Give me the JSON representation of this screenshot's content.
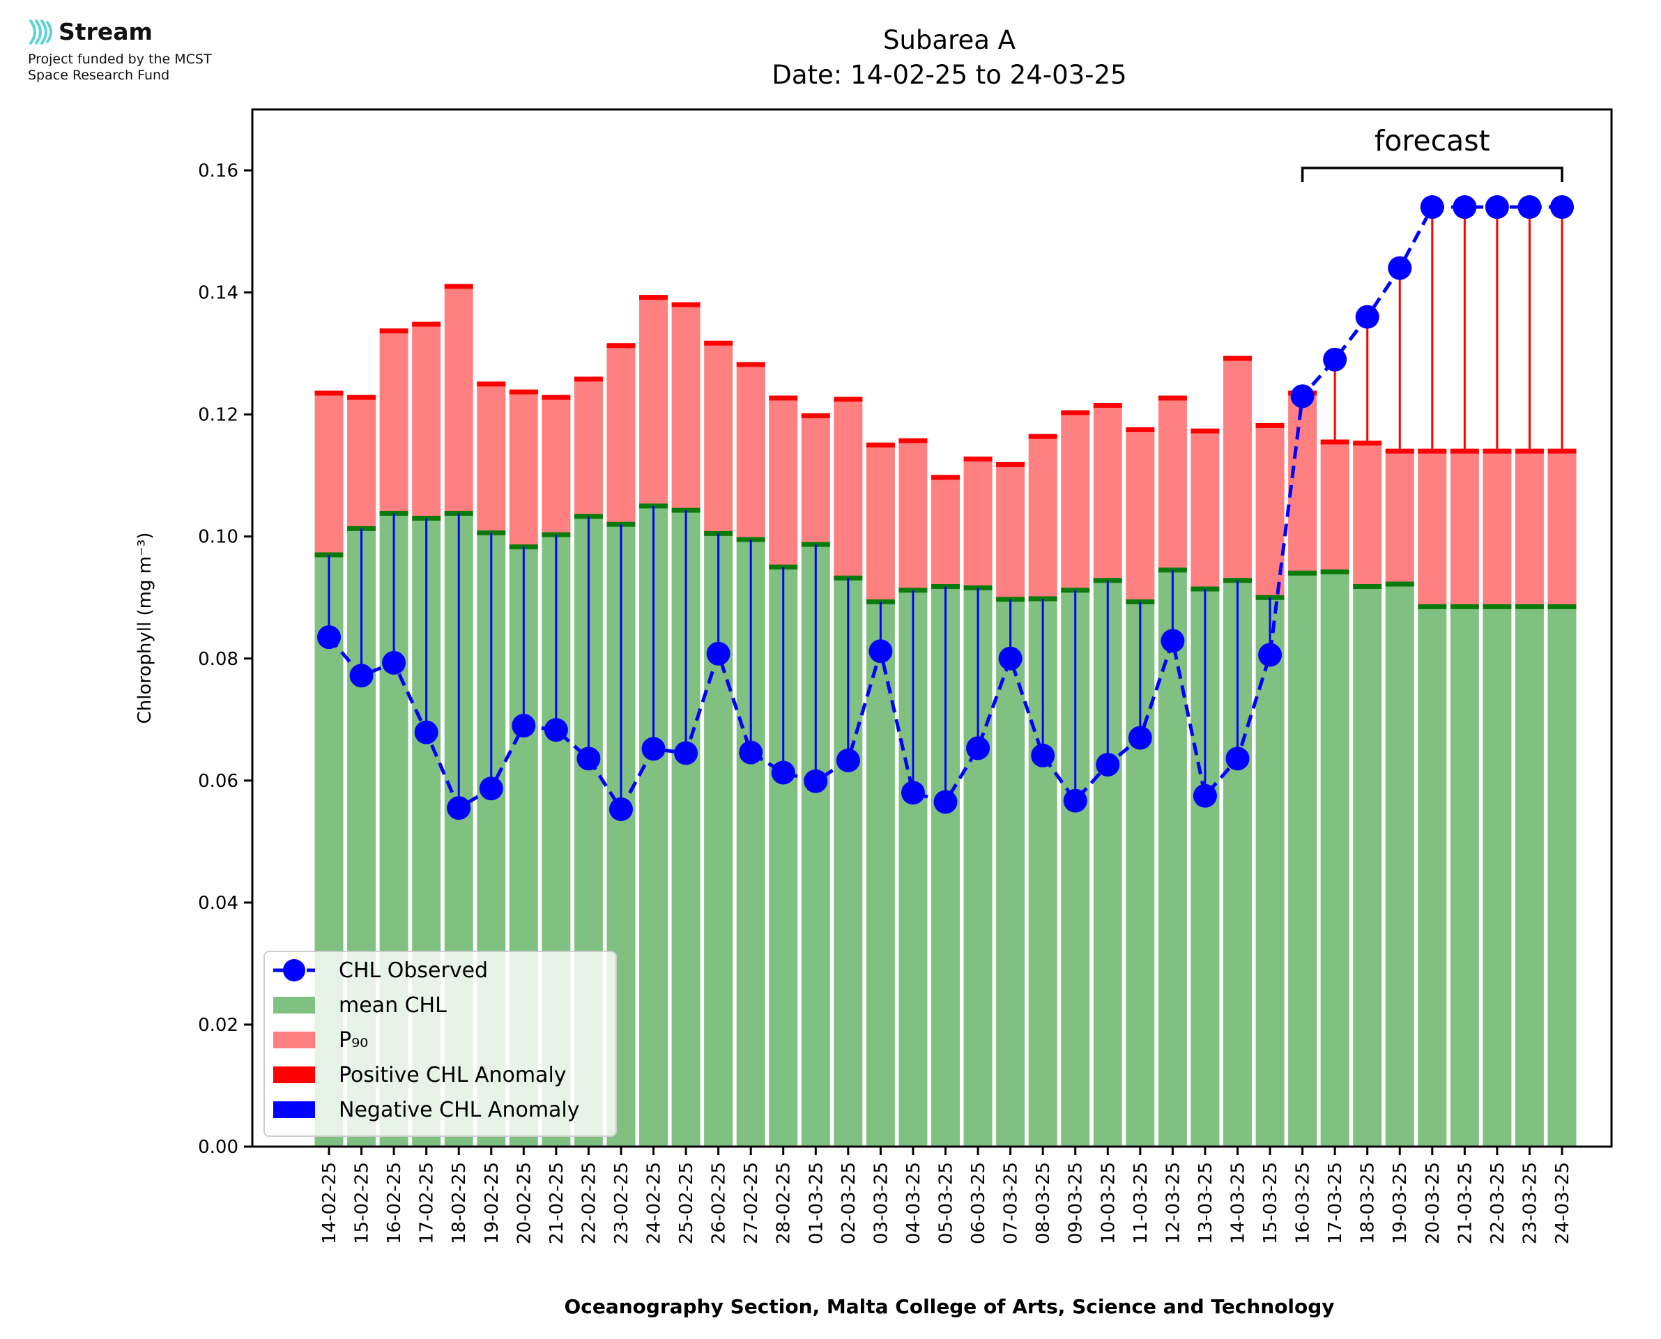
{
  "logo": {
    "brand": "Stream",
    "funding_line1": "Project funded by the MCST",
    "funding_line2": "Space Research Fund"
  },
  "chart_data": {
    "type": "bar",
    "title": "Subarea A",
    "subtitle": "Date: 14-02-25 to 24-03-25",
    "xlabel": "Oceanography Section, Malta College of Arts, Science and Technology",
    "ylabel": "Chlorophyll (mg m⁻³)",
    "ylim": [
      0,
      0.17
    ],
    "yticks": [
      0.0,
      0.02,
      0.04,
      0.06,
      0.08,
      0.1,
      0.12,
      0.14,
      0.16
    ],
    "ytick_labels": [
      "0.00",
      "0.02",
      "0.04",
      "0.06",
      "0.08",
      "0.10",
      "0.12",
      "0.14",
      "0.16"
    ],
    "grid": false,
    "legend_position": "lower-left",
    "categories": [
      "14-02-25",
      "15-02-25",
      "16-02-25",
      "17-02-25",
      "18-02-25",
      "19-02-25",
      "20-02-25",
      "21-02-25",
      "22-02-25",
      "23-02-25",
      "24-02-25",
      "25-02-25",
      "26-02-25",
      "27-02-25",
      "28-02-25",
      "01-03-25",
      "02-03-25",
      "03-03-25",
      "04-03-25",
      "05-03-25",
      "06-03-25",
      "07-03-25",
      "08-03-25",
      "09-03-25",
      "10-03-25",
      "11-03-25",
      "12-03-25",
      "13-03-25",
      "14-03-25",
      "15-03-25",
      "16-03-25",
      "17-03-25",
      "18-03-25",
      "19-03-25",
      "20-03-25",
      "21-03-25",
      "22-03-25",
      "23-03-25",
      "24-03-25"
    ],
    "series": [
      {
        "name": "CHL Observed",
        "color": "#0000ff",
        "style": "dashed-line-with-markers",
        "values": [
          0.0835,
          0.0772,
          0.0793,
          0.0679,
          0.0555,
          0.0587,
          0.069,
          0.0683,
          0.0636,
          0.0553,
          0.0652,
          0.0645,
          0.0808,
          0.0646,
          0.0613,
          0.0599,
          0.0633,
          0.0812,
          0.058,
          0.0565,
          0.0653,
          0.08,
          0.0641,
          0.0567,
          0.0626,
          0.067,
          0.0829,
          0.0575,
          0.0636,
          0.0806,
          0.123,
          0.129,
          0.136,
          0.144,
          0.154,
          0.154,
          0.154,
          0.154,
          0.154
        ]
      },
      {
        "name": "mean CHL",
        "color": "#80c080",
        "values": [
          0.097,
          0.1013,
          0.1038,
          0.103,
          0.1038,
          0.1006,
          0.0983,
          0.1003,
          0.1033,
          0.102,
          0.105,
          0.1043,
          0.1005,
          0.0995,
          0.095,
          0.0987,
          0.0932,
          0.0893,
          0.0912,
          0.0918,
          0.0916,
          0.0897,
          0.0898,
          0.0912,
          0.0928,
          0.0893,
          0.0945,
          0.0914,
          0.0928,
          0.09,
          0.094,
          0.0942,
          0.0918,
          0.0922,
          0.0885,
          0.0885,
          0.0885,
          0.0885,
          0.0885
        ]
      },
      {
        "name": "P₉₀",
        "color": "#ff8080",
        "values": [
          0.1235,
          0.1228,
          0.1337,
          0.1348,
          0.141,
          0.125,
          0.1237,
          0.1228,
          0.1258,
          0.1313,
          0.1392,
          0.138,
          0.1317,
          0.1282,
          0.1227,
          0.1198,
          0.1225,
          0.115,
          0.1157,
          0.1097,
          0.1127,
          0.1118,
          0.1164,
          0.1203,
          0.1215,
          0.1175,
          0.1227,
          0.1173,
          0.1292,
          0.1182,
          0.1235,
          0.1155,
          0.1153,
          0.114,
          0.114,
          0.114,
          0.114,
          0.114,
          0.114
        ]
      },
      {
        "name": "Positive CHL Anomaly",
        "color": "#ff0000"
      },
      {
        "name": "Negative CHL Anomaly",
        "color": "#0000ff"
      }
    ],
    "annotations": [
      {
        "text": "forecast",
        "from": "16-03-25",
        "to": "24-03-25"
      }
    ]
  }
}
